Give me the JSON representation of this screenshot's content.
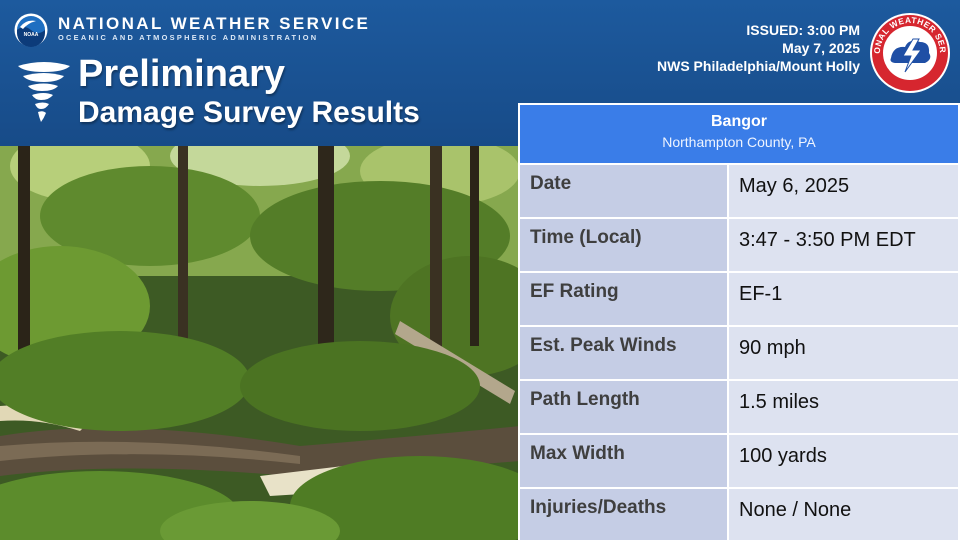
{
  "header": {
    "agency": "NATIONAL WEATHER SERVICE",
    "agency_sub": "OCEANIC AND ATMOSPHERIC ADMINISTRATION",
    "noaa_logo_text": "NOAA",
    "title_line1": "Preliminary",
    "title_line2": "Damage Survey Results"
  },
  "issued": {
    "line1": "ISSUED: 3:00 PM",
    "line2": "May 7, 2025",
    "line3": "NWS Philadelphia/Mount Holly"
  },
  "nws_logo_text": "NATIONAL WEATHER SERVICE",
  "location": {
    "name": "Bangor",
    "county": "Northampton County, PA"
  },
  "rows": [
    {
      "label": "Date",
      "value": "May 6, 2025"
    },
    {
      "label": "Time (Local)",
      "value": "3:47 - 3:50 PM EDT"
    },
    {
      "label": "EF Rating",
      "value": "EF-1"
    },
    {
      "label": "Est. Peak Winds",
      "value": "90 mph"
    },
    {
      "label": "Path Length",
      "value": "1.5 miles"
    },
    {
      "label": "Max Width",
      "value": "100 yards"
    },
    {
      "label": "Injuries/Deaths",
      "value": "None / None"
    }
  ],
  "colors": {
    "header_blue": "#1d5a9e",
    "table_header_blue": "#3a7de8",
    "label_cell": "#c5cde5",
    "value_cell": "#dde2f0"
  }
}
